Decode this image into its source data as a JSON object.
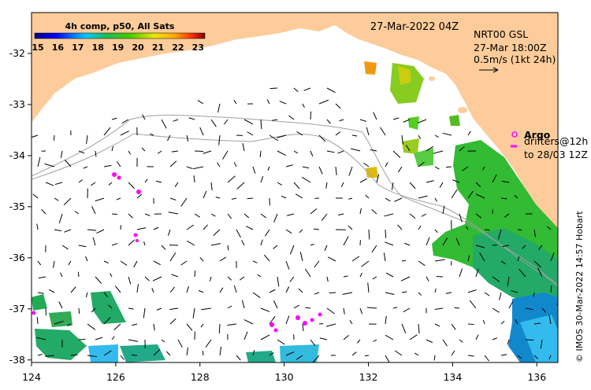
{
  "title": "27-Mar-2022 04Z",
  "colorbar": {
    "label": "4h comp, p50, All Sats",
    "ticks": [
      "15",
      "16",
      "17",
      "18",
      "19",
      "20",
      "21",
      "22",
      "23"
    ],
    "range": [
      15,
      23.5
    ]
  },
  "current_legend": {
    "line1": "NRT00 GSL",
    "line2": "27-Mar 18:00Z",
    "line3": "0.5m/s (1kt 24h)"
  },
  "float_legend": {
    "argo": "Argo",
    "drifters": "drifters@12h",
    "to": "to 28/03 12Z"
  },
  "credit": "© IMOS 30-Mar-2022 14:57 Hobart",
  "x_ticks": [
    "124",
    "126",
    "128",
    "130",
    "132",
    "134",
    "136"
  ],
  "y_ticks": [
    "-32",
    "-33",
    "-34",
    "-35",
    "-36",
    "-37",
    "-38"
  ],
  "map_extent": {
    "lon": [
      124,
      136.5
    ],
    "lat": [
      -38.05,
      -31.2
    ]
  },
  "colors": {
    "land": "#fdcc9a",
    "ocean": "#ffffff",
    "argo": "#ff00ff",
    "contour": "#a0a0a0",
    "arrow": "#000000"
  }
}
